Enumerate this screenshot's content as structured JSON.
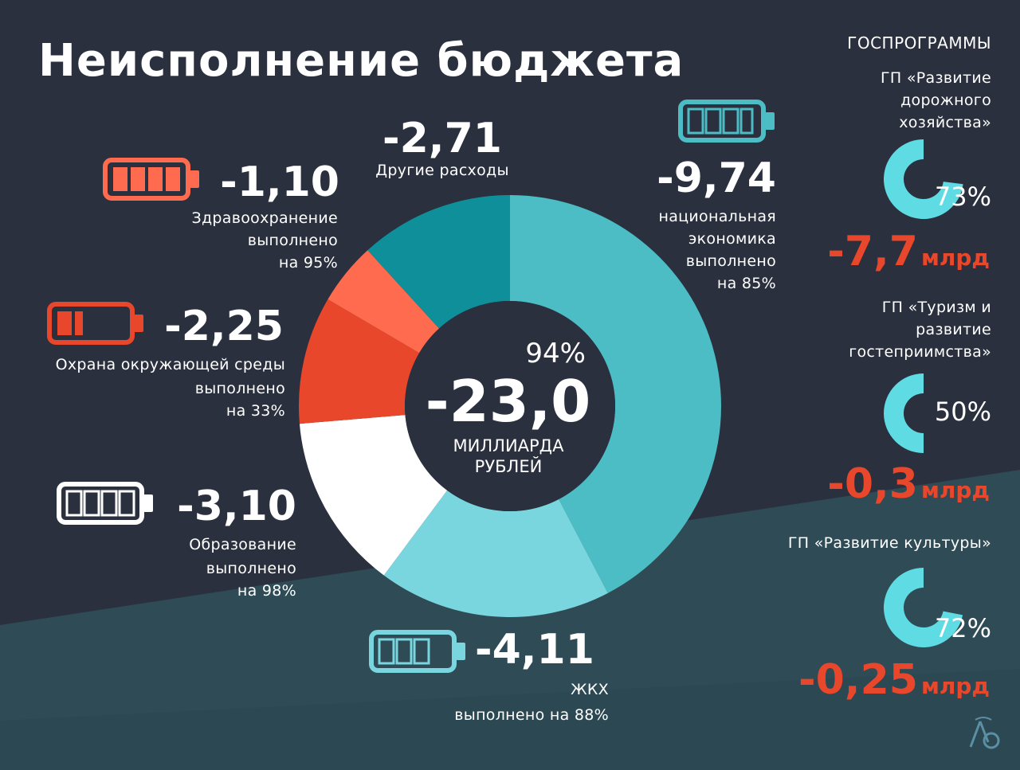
{
  "title": "Неисполнение бюджета",
  "colors": {
    "background": "#2a303e",
    "band": "#2f4b56",
    "red": "#e8472b",
    "coral": "#ff6b4f",
    "teal_dark": "#0e8f9a",
    "teal_mid": "#4cbcc5",
    "teal_light": "#79d6de",
    "white": "#ffffff"
  },
  "center": {
    "percent": "94%",
    "value": "-23,0",
    "unit_line1": "МИЛЛИАРДА",
    "unit_line2": "РУБЛЕЙ"
  },
  "callouts": {
    "health": {
      "value": "-1,10",
      "line1": "Здравоохранение",
      "line2": "выполнено",
      "line3": "на 95%",
      "battery_icon": "battery-full-icon"
    },
    "environment": {
      "value": "-2,25",
      "line1": "Охрана окружающей среды",
      "line2": "выполнено",
      "line3": "на 33%",
      "battery_icon": "battery-low-icon"
    },
    "education": {
      "value": "-3,10",
      "line1": "Образование",
      "line2": "выполнено",
      "line3": "на 98%",
      "battery_icon": "battery-full-icon"
    },
    "other": {
      "value": "-2,71",
      "line1": "Другие расходы"
    },
    "economy": {
      "value": "-9,74",
      "line1": "национальная",
      "line2": "экономика",
      "line3": "выполнено",
      "line4": "на 85%",
      "battery_icon": "battery-high-icon"
    },
    "housing": {
      "value": "-4,11",
      "line1": "ЖКХ",
      "line2": "выполнено на 88%",
      "battery_icon": "battery-medium-icon"
    }
  },
  "programs": {
    "header": "ГОСПРОГРАММЫ",
    "items": [
      {
        "line1": "ГП «Развитие",
        "line2": "дорожного",
        "line3": "хозяйства»",
        "percent": "73%",
        "fraction": 0.73,
        "value": "-7,7",
        "unit": "млрд"
      },
      {
        "line1": "ГП «Туризм и",
        "line2": "развитие",
        "line3": "гостеприимства»",
        "percent": "50%",
        "fraction": 0.5,
        "value": "-0,3",
        "unit": "млрд"
      },
      {
        "line1": "ГП «Развитие культуры»",
        "percent": "72%",
        "fraction": 0.72,
        "value": "-0,25",
        "unit": "млрд"
      }
    ]
  },
  "chart_data": {
    "type": "pie",
    "donut": true,
    "total": -23.0,
    "slices": [
      {
        "label": "национальная экономика",
        "value": 9.74,
        "color": "#4cbcc5"
      },
      {
        "label": "ЖКХ",
        "value": 4.11,
        "color": "#79d6de"
      },
      {
        "label": "Образование",
        "value": 3.1,
        "color": "#ffffff"
      },
      {
        "label": "Охрана окружающей среды",
        "value": 2.25,
        "color": "#e8472b"
      },
      {
        "label": "Здравоохранение",
        "value": 1.1,
        "color": "#ff6b4f"
      },
      {
        "label": "Другие расходы",
        "value": 2.71,
        "color": "#0e8f9a"
      }
    ]
  }
}
